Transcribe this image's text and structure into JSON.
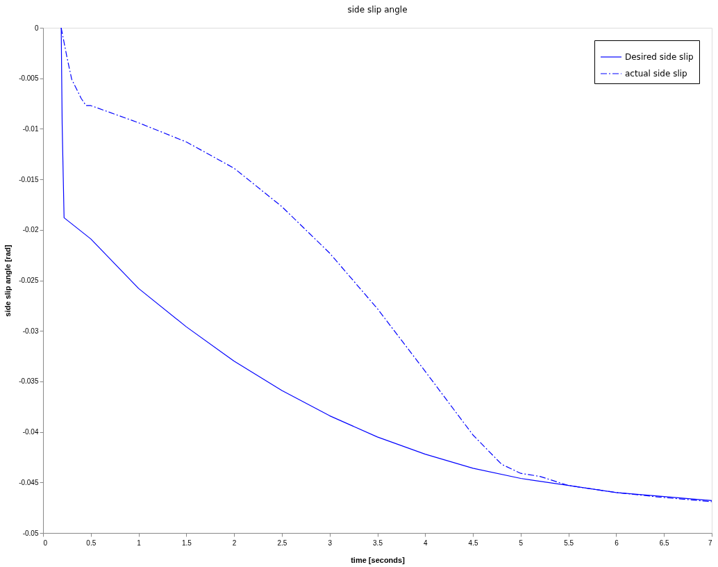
{
  "chart_data": {
    "type": "line",
    "title": "side slip angle",
    "xlabel": "time [seconds]",
    "ylabel": "side slip angle [rad]",
    "xlim": [
      0,
      7
    ],
    "xticks": [
      0,
      0.5,
      1,
      1.5,
      2,
      2.5,
      3,
      3.5,
      4,
      4.5,
      5,
      5.5,
      6,
      6.5,
      7
    ],
    "ylim": [
      -0.05,
      0
    ],
    "yticks": [
      -0.05,
      -0.045,
      -0.04,
      -0.035,
      -0.03,
      -0.025,
      -0.02,
      -0.015,
      -0.01,
      -0.005,
      0
    ],
    "grid": false,
    "legend": "top right",
    "marker": "none",
    "series": [
      {
        "name": "Desired side slip",
        "color": "#0000ff",
        "line_style": "solid",
        "x": [
          0.19,
          0.2,
          0.22,
          0.5,
          1,
          1.5,
          2,
          2.5,
          3,
          3.5,
          4,
          4.5,
          5,
          5.5,
          6,
          6.5,
          7
        ],
        "values": [
          0,
          -0.0095,
          -0.0188,
          -0.0209,
          -0.0258,
          -0.0296,
          -0.033,
          -0.0359,
          -0.0384,
          -0.0405,
          -0.0422,
          -0.0436,
          -0.0446,
          -0.0453,
          -0.046,
          -0.0464,
          -0.0468
        ]
      },
      {
        "name": "actual side slip",
        "color": "#0000ff",
        "line_style": "dashed",
        "x": [
          0.19,
          0.25,
          0.3,
          0.4,
          0.45,
          0.5,
          1,
          1.5,
          2,
          2.5,
          3,
          3.5,
          4,
          4.5,
          4.8,
          5,
          5.2,
          5.5,
          6,
          6.5,
          7
        ],
        "values": [
          0,
          -0.0029,
          -0.0051,
          -0.007,
          -0.0077,
          -0.0077,
          -0.0094,
          -0.0113,
          -0.0139,
          -0.0177,
          -0.0223,
          -0.0278,
          -0.034,
          -0.0403,
          -0.0432,
          -0.0441,
          -0.0444,
          -0.0453,
          -0.046,
          -0.0465,
          -0.0469
        ]
      }
    ]
  }
}
